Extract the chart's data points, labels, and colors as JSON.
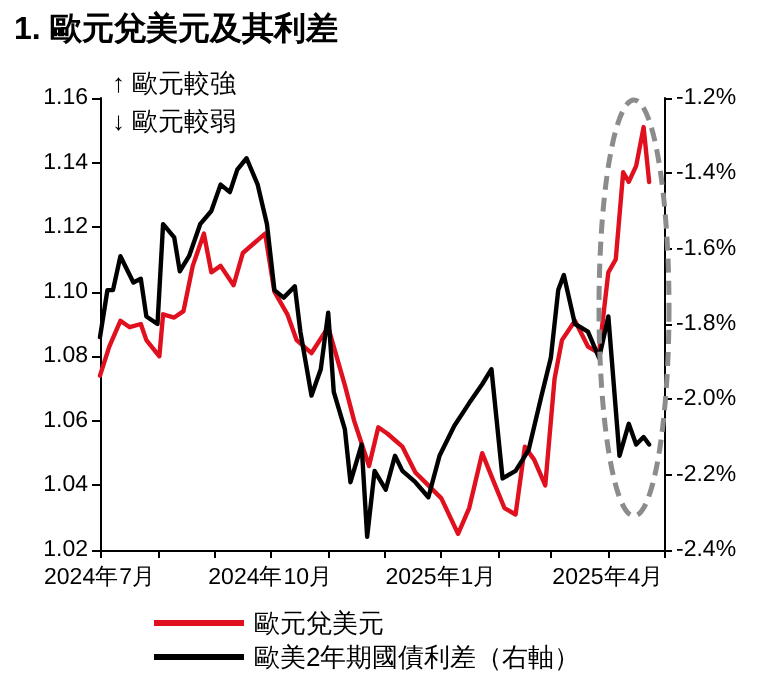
{
  "chart_data": {
    "type": "line",
    "title": "1. 歐元兌美元及其利差",
    "annotations": [
      "↑ 歐元較強",
      "↓ 歐元較弱"
    ],
    "xlim": [
      "2024-07-01",
      "2025-05-01"
    ],
    "xticks": [
      {
        "value": "2024-07-01",
        "label": "2024年7月"
      },
      {
        "value": "2024-08-01",
        "label": null
      },
      {
        "value": "2024-09-01",
        "label": null
      },
      {
        "value": "2024-10-01",
        "label": "2024年10月"
      },
      {
        "value": "2024-11-01",
        "label": null
      },
      {
        "value": "2024-12-01",
        "label": null
      },
      {
        "value": "2025-01-01",
        "label": "2025年1月"
      },
      {
        "value": "2025-02-01",
        "label": null
      },
      {
        "value": "2025-03-01",
        "label": null
      },
      {
        "value": "2025-04-01",
        "label": "2025年4月"
      },
      {
        "value": "2025-05-01",
        "label": null
      }
    ],
    "ylim": [
      1.02,
      1.16
    ],
    "yticks": [
      {
        "value": 1.02,
        "label": "1.02"
      },
      {
        "value": 1.04,
        "label": "1.04"
      },
      {
        "value": 1.06,
        "label": "1.06"
      },
      {
        "value": 1.08,
        "label": "1.08"
      },
      {
        "value": 1.1,
        "label": "1.10"
      },
      {
        "value": 1.12,
        "label": "1.12"
      },
      {
        "value": 1.14,
        "label": "1.14"
      },
      {
        "value": 1.16,
        "label": "1.16"
      }
    ],
    "y2lim": [
      -2.4,
      -1.2
    ],
    "y2ticks": [
      {
        "value": -2.4,
        "label": "-2.4%"
      },
      {
        "value": -2.2,
        "label": "-2.2%"
      },
      {
        "value": -2.0,
        "label": "-2.0%"
      },
      {
        "value": -1.8,
        "label": "-1.8%"
      },
      {
        "value": -1.6,
        "label": "-1.6%"
      },
      {
        "value": -1.4,
        "label": "-1.4%"
      },
      {
        "value": -1.2,
        "label": "-1.2%"
      }
    ],
    "grid": false,
    "legend": "bottom",
    "marker": "none",
    "line_style": "solid",
    "series": [
      {
        "name": "歐元兌美元",
        "color": "#e0101e",
        "x": [
          "2024-07-01",
          "2024-07-06",
          "2024-07-12",
          "2024-07-17",
          "2024-07-23",
          "2024-07-26",
          "2024-08-02",
          "2024-08-04",
          "2024-08-10",
          "2024-08-15",
          "2024-08-20",
          "2024-08-26",
          "2024-08-30",
          "2024-09-04",
          "2024-09-11",
          "2024-09-16",
          "2024-09-24",
          "2024-09-28",
          "2024-10-03",
          "2024-10-10",
          "2024-10-15",
          "2024-10-23",
          "2024-11-01",
          "2024-11-04",
          "2024-11-10",
          "2024-11-15",
          "2024-11-23",
          "2024-11-28",
          "2024-12-03",
          "2024-12-07",
          "2024-12-11",
          "2024-12-18",
          "2024-12-25",
          "2025-01-01",
          "2025-01-10",
          "2025-01-16",
          "2025-01-23",
          "2025-01-30",
          "2025-02-04",
          "2025-02-10",
          "2025-02-15",
          "2025-02-20",
          "2025-02-26",
          "2025-03-03",
          "2025-03-07",
          "2025-03-14",
          "2025-03-21",
          "2025-03-27",
          "2025-04-01",
          "2025-04-05",
          "2025-04-09",
          "2025-04-12",
          "2025-04-16",
          "2025-04-20",
          "2025-04-23"
        ],
        "values": [
          1.074,
          1.083,
          1.091,
          1.089,
          1.09,
          1.085,
          1.08,
          1.093,
          1.092,
          1.094,
          1.108,
          1.118,
          1.106,
          1.108,
          1.102,
          1.112,
          1.116,
          1.118,
          1.1,
          1.093,
          1.085,
          1.081,
          1.089,
          1.083,
          1.071,
          1.06,
          1.046,
          1.058,
          1.056,
          1.054,
          1.052,
          1.044,
          1.04,
          1.036,
          1.025,
          1.033,
          1.05,
          1.04,
          1.033,
          1.031,
          1.052,
          1.048,
          1.04,
          1.073,
          1.085,
          1.091,
          1.083,
          1.081,
          1.106,
          1.11,
          1.137,
          1.134,
          1.139,
          1.151,
          1.134
        ]
      },
      {
        "name": "歐美2年期國債利差（右軸）",
        "color": "#000000",
        "axis": "y2",
        "x": [
          "2024-07-01",
          "2024-07-05",
          "2024-07-08",
          "2024-07-12",
          "2024-07-16",
          "2024-07-19",
          "2024-07-23",
          "2024-07-26",
          "2024-08-01",
          "2024-08-04",
          "2024-08-10",
          "2024-08-13",
          "2024-08-18",
          "2024-08-24",
          "2024-08-30",
          "2024-09-04",
          "2024-09-09",
          "2024-09-13",
          "2024-09-18",
          "2024-09-24",
          "2024-09-29",
          "2024-10-03",
          "2024-10-08",
          "2024-10-14",
          "2024-10-17",
          "2024-10-23",
          "2024-10-28",
          "2024-11-01",
          "2024-11-04",
          "2024-11-10",
          "2024-11-13",
          "2024-11-19",
          "2024-11-22",
          "2024-11-26",
          "2024-12-02",
          "2024-12-07",
          "2024-12-11",
          "2024-12-18",
          "2024-12-25",
          "2024-12-31",
          "2025-01-08",
          "2025-01-16",
          "2025-01-23",
          "2025-01-28",
          "2025-02-03",
          "2025-02-10",
          "2025-02-17",
          "2025-02-24",
          "2025-03-01",
          "2025-03-05",
          "2025-03-08",
          "2025-03-14",
          "2025-03-21",
          "2025-03-27",
          "2025-04-01",
          "2025-04-07",
          "2025-04-12",
          "2025-04-16",
          "2025-04-20",
          "2025-04-23"
        ],
        "values": [
          -1.835,
          -1.71,
          -1.71,
          -1.62,
          -1.66,
          -1.69,
          -1.68,
          -1.78,
          -1.8,
          -1.535,
          -1.57,
          -1.66,
          -1.62,
          -1.535,
          -1.5,
          -1.43,
          -1.45,
          -1.39,
          -1.36,
          -1.43,
          -1.535,
          -1.71,
          -1.73,
          -1.7,
          -1.82,
          -1.99,
          -1.92,
          -1.77,
          -1.98,
          -2.08,
          -2.22,
          -2.12,
          -2.365,
          -2.19,
          -2.24,
          -2.15,
          -2.19,
          -2.22,
          -2.26,
          -2.15,
          -2.07,
          -2.01,
          -1.96,
          -1.92,
          -2.21,
          -2.19,
          -2.135,
          -1.99,
          -1.89,
          -1.71,
          -1.67,
          -1.8,
          -1.82,
          -1.89,
          -1.78,
          -2.15,
          -2.065,
          -2.12,
          -2.1,
          -2.12
        ]
      }
    ]
  }
}
